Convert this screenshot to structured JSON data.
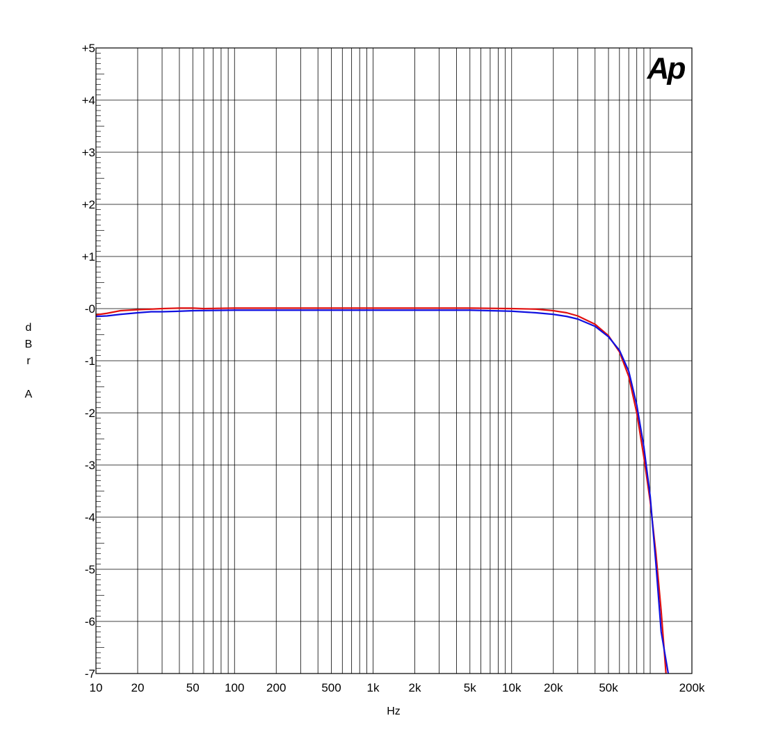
{
  "chart_data": {
    "type": "line",
    "xlabel": "Hz",
    "ylabel": [
      "d",
      "B",
      "r",
      "",
      "A"
    ],
    "x_scale": "log",
    "xlim": [
      10,
      200000
    ],
    "ylim": [
      -7,
      5
    ],
    "grid": true,
    "x_ticks": [
      10,
      20,
      50,
      100,
      200,
      500,
      1000,
      2000,
      5000,
      10000,
      20000,
      50000,
      200000
    ],
    "x_tick_labels": [
      "10",
      "20",
      "50",
      "100",
      "200",
      "500",
      "1k",
      "2k",
      "5k",
      "10k",
      "20k",
      "50k",
      "200k"
    ],
    "y_ticks": [
      5,
      4,
      3,
      2,
      1,
      0,
      -1,
      -2,
      -3,
      -4,
      -5,
      -6,
      -7
    ],
    "y_tick_labels": [
      "+5",
      "+4",
      "+3",
      "+2",
      "+1",
      "-0",
      "-1",
      "-2",
      "-3",
      "-4",
      "-5",
      "-6",
      "-7"
    ],
    "colors": {
      "series_1": "#e01010",
      "series_2": "#1010e0",
      "logo": "#1414dc"
    },
    "logo_text": "Ap",
    "series": [
      {
        "color": "#e01010",
        "points": [
          [
            10,
            -0.12
          ],
          [
            12,
            -0.09
          ],
          [
            15,
            -0.04
          ],
          [
            20,
            -0.02
          ],
          [
            25,
            -0.01
          ],
          [
            30,
            0.0
          ],
          [
            40,
            0.01
          ],
          [
            50,
            0.01
          ],
          [
            60,
            0.0
          ],
          [
            100,
            0.01
          ],
          [
            200,
            0.01
          ],
          [
            500,
            0.01
          ],
          [
            1000,
            0.01
          ],
          [
            2000,
            0.01
          ],
          [
            5000,
            0.01
          ],
          [
            10000,
            0.0
          ],
          [
            15000,
            -0.01
          ],
          [
            20000,
            -0.04
          ],
          [
            25000,
            -0.08
          ],
          [
            30000,
            -0.14
          ],
          [
            40000,
            -0.3
          ],
          [
            50000,
            -0.52
          ],
          [
            60000,
            -0.83
          ],
          [
            70000,
            -1.3
          ],
          [
            80000,
            -2.0
          ],
          [
            90000,
            -2.85
          ],
          [
            100000,
            -3.7
          ],
          [
            110000,
            -4.7
          ],
          [
            120000,
            -5.8
          ],
          [
            130000,
            -7.0
          ]
        ]
      },
      {
        "color": "#1010e0",
        "points": [
          [
            10,
            -0.15
          ],
          [
            12,
            -0.14
          ],
          [
            15,
            -0.11
          ],
          [
            20,
            -0.08
          ],
          [
            25,
            -0.06
          ],
          [
            30,
            -0.06
          ],
          [
            40,
            -0.05
          ],
          [
            50,
            -0.04
          ],
          [
            100,
            -0.03
          ],
          [
            200,
            -0.03
          ],
          [
            500,
            -0.03
          ],
          [
            1000,
            -0.03
          ],
          [
            2000,
            -0.03
          ],
          [
            5000,
            -0.03
          ],
          [
            10000,
            -0.05
          ],
          [
            15000,
            -0.08
          ],
          [
            20000,
            -0.11
          ],
          [
            25000,
            -0.15
          ],
          [
            30000,
            -0.2
          ],
          [
            40000,
            -0.34
          ],
          [
            50000,
            -0.54
          ],
          [
            60000,
            -0.8
          ],
          [
            70000,
            -1.2
          ],
          [
            80000,
            -1.85
          ],
          [
            90000,
            -2.65
          ],
          [
            100000,
            -3.6
          ],
          [
            110000,
            -4.9
          ],
          [
            120000,
            -6.2
          ],
          [
            135000,
            -7.0
          ]
        ]
      }
    ]
  }
}
